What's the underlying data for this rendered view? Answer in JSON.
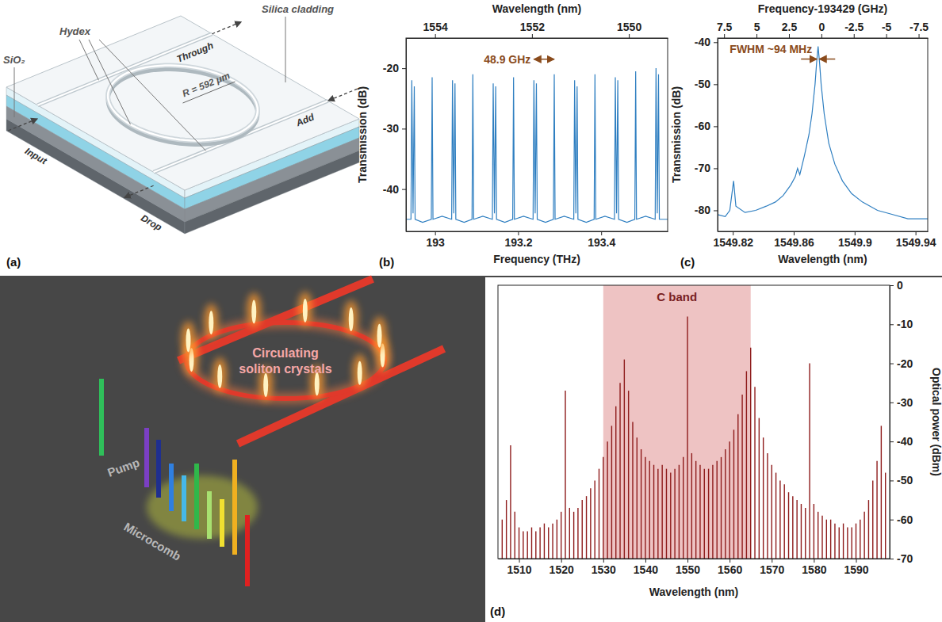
{
  "chart_data": [
    {
      "panel": "(b)",
      "type": "line",
      "color": "#2f7fc1",
      "x_label": "Frequency (THz)",
      "y_label": "Transmission (dB)",
      "x2_label": "Wavelength (nm)",
      "x": [
        192.93,
        192.942,
        192.944,
        192.947,
        192.95,
        192.952,
        192.97,
        192.991,
        192.993,
        192.995,
        193.017,
        193.04,
        193.042,
        193.045,
        193.048,
        193.05,
        193.07,
        193.089,
        193.091,
        193.093,
        193.115,
        193.138,
        193.14,
        193.143,
        193.146,
        193.148,
        193.168,
        193.187,
        193.189,
        193.191,
        193.213,
        193.236,
        193.238,
        193.241,
        193.244,
        193.246,
        193.266,
        193.285,
        193.287,
        193.289,
        193.311,
        193.334,
        193.336,
        193.339,
        193.342,
        193.344,
        193.364,
        193.383,
        193.385,
        193.387,
        193.409,
        193.432,
        193.434,
        193.437,
        193.44,
        193.442,
        193.462,
        193.481,
        193.483,
        193.485,
        193.507,
        193.53,
        193.532,
        193.535,
        193.538,
        193.54,
        193.56
      ],
      "values": [
        -45,
        -45,
        -22,
        -44,
        -23,
        -45,
        -45.5,
        -45,
        -21.5,
        -45,
        -44.5,
        -45,
        -22,
        -44,
        -22.5,
        -45,
        -45.5,
        -45,
        -21,
        -45,
        -44.5,
        -45,
        -22.5,
        -44,
        -23,
        -45,
        -45.5,
        -45,
        -21.5,
        -45,
        -44.5,
        -45,
        -22,
        -44,
        -22.5,
        -45,
        -45.5,
        -45,
        -21,
        -45,
        -44.5,
        -45,
        -22,
        -44,
        -23,
        -45,
        -45.5,
        -45,
        -21,
        -45,
        -44.5,
        -45,
        -21.5,
        -44,
        -22,
        -45,
        -45.5,
        -45,
        -20.5,
        -45,
        -44.5,
        -45,
        -20,
        -44,
        -21,
        -45,
        -45
      ],
      "xlim": [
        192.93,
        193.56
      ],
      "xticks": [
        193,
        193.2,
        193.4
      ],
      "x2lim": [
        1554.6,
        1549.2
      ],
      "x2ticks": [
        1554,
        1552,
        1550
      ],
      "ylim": [
        -47,
        -15
      ],
      "yticks": [
        -40,
        -30,
        -20
      ],
      "grid": false,
      "annotations": [
        {
          "text": "48.9 GHz",
          "x_range": [
            193.238,
            193.287
          ],
          "y": -18.5
        }
      ]
    },
    {
      "panel": "(c)",
      "type": "line",
      "color": "#2f7fc1",
      "x_label": "Wavelength (nm)",
      "y_label": "Transmission (dB)",
      "x2_label": "Frequency-193429 (GHz)",
      "x": [
        1549.81,
        1549.815,
        1549.818,
        1549.8205,
        1549.822,
        1549.828,
        1549.835,
        1549.842,
        1549.848,
        1549.853,
        1549.858,
        1549.861,
        1549.8625,
        1549.864,
        1549.867,
        1549.87,
        1549.872,
        1549.874,
        1549.875,
        1549.876,
        1549.877,
        1549.878,
        1549.88,
        1549.883,
        1549.887,
        1549.892,
        1549.898,
        1549.905,
        1549.915,
        1549.925,
        1549.935,
        1549.948
      ],
      "values": [
        -81,
        -81.5,
        -80,
        -73,
        -79,
        -80.5,
        -80,
        -79,
        -78,
        -76.5,
        -74,
        -72,
        -70,
        -71.5,
        -67,
        -62,
        -57,
        -50,
        -45,
        -41,
        -45,
        -50,
        -57,
        -64,
        -69,
        -73,
        -76,
        -78,
        -80,
        -81,
        -82,
        -82
      ],
      "xlim": [
        1549.81,
        1549.948
      ],
      "xticks": [
        1549.82,
        1549.86,
        1549.9,
        1549.94
      ],
      "x2lim": [
        8,
        -8.2
      ],
      "x2ticks": [
        7.5,
        5,
        2.5,
        0,
        -2.5,
        -5,
        -7.5
      ],
      "ylim": [
        -85,
        -39
      ],
      "yticks": [
        -80,
        -70,
        -60,
        -50,
        -40
      ],
      "grid": false,
      "annotations": [
        {
          "text": "FWHM ~94 MHz",
          "x_range": [
            1549.8752,
            1549.8768
          ],
          "y": -44
        }
      ]
    },
    {
      "panel": "(d)",
      "type": "stem",
      "color": "#8e1b1b",
      "x_label": "Wavelength (nm)",
      "y_label": "Optical power (dBm)",
      "x": [
        1506,
        1507,
        1508,
        1509,
        1510,
        1511,
        1512,
        1513,
        1514,
        1515,
        1516,
        1517,
        1518,
        1519,
        1520,
        1521,
        1522,
        1523,
        1524,
        1525,
        1526,
        1527,
        1528,
        1529,
        1530,
        1531,
        1532,
        1533,
        1534,
        1535,
        1536,
        1537,
        1538,
        1539,
        1540,
        1541,
        1542,
        1543,
        1544,
        1545,
        1546,
        1547,
        1548,
        1549,
        1550,
        1551,
        1552,
        1553,
        1554,
        1555,
        1556,
        1557,
        1558,
        1559,
        1560,
        1561,
        1562,
        1563,
        1564,
        1565,
        1566,
        1567,
        1568,
        1569,
        1570,
        1571,
        1572,
        1573,
        1574,
        1575,
        1576,
        1577,
        1578,
        1579,
        1580,
        1581,
        1582,
        1583,
        1584,
        1585,
        1586,
        1587,
        1588,
        1589,
        1590,
        1591,
        1592,
        1593,
        1594,
        1595,
        1596,
        1597
      ],
      "values": [
        -60,
        -55,
        -41,
        -58,
        -62,
        -63,
        -63,
        -62,
        -63,
        -62,
        -61,
        -62,
        -61,
        -60,
        -58,
        -27,
        -57,
        -58,
        -57,
        -55,
        -54,
        -52,
        -50,
        -47,
        -44,
        -40,
        -36,
        -31,
        -25,
        -19,
        -27,
        -35,
        -39,
        -42,
        -44,
        -45,
        -46,
        -47,
        -46,
        -47,
        -48,
        -47,
        -46,
        -44,
        -8,
        -43,
        -45,
        -46,
        -47,
        -47,
        -46,
        -45,
        -44,
        -42,
        -40,
        -37,
        -33,
        -28,
        -22,
        -16,
        -26,
        -34,
        -39,
        -43,
        -46,
        -48,
        -50,
        -51,
        -53,
        -54,
        -55,
        -56,
        -57,
        -20,
        -56,
        -58,
        -59,
        -60,
        -60,
        -61,
        -62,
        -61,
        -62,
        -62,
        -61,
        -60,
        -58,
        -55,
        -50,
        -45,
        -36,
        -48
      ],
      "xlim": [
        1505,
        1598
      ],
      "xticks": [
        1510,
        1520,
        1530,
        1540,
        1550,
        1560,
        1570,
        1580,
        1590
      ],
      "ylim": [
        -70,
        0
      ],
      "yticks": [
        0,
        -10,
        -20,
        -30,
        -40,
        -50,
        -60,
        -70
      ],
      "grid": false,
      "band": {
        "text": "C band",
        "x_range": [
          1530,
          1565
        ],
        "color": "#eec3c3"
      }
    }
  ],
  "diagrams": {
    "a": {
      "panel": "(a)",
      "cladding": "Silica cladding",
      "core": "Hydex",
      "substrate": "SiO₂",
      "radius": "R = 592 μm",
      "input": "Input",
      "drop": "Drop",
      "through": "Through",
      "add": "Add"
    },
    "d": {
      "ring": "Circulating soliton crystals",
      "pump": "Pump",
      "comb": "Microcomb"
    }
  }
}
